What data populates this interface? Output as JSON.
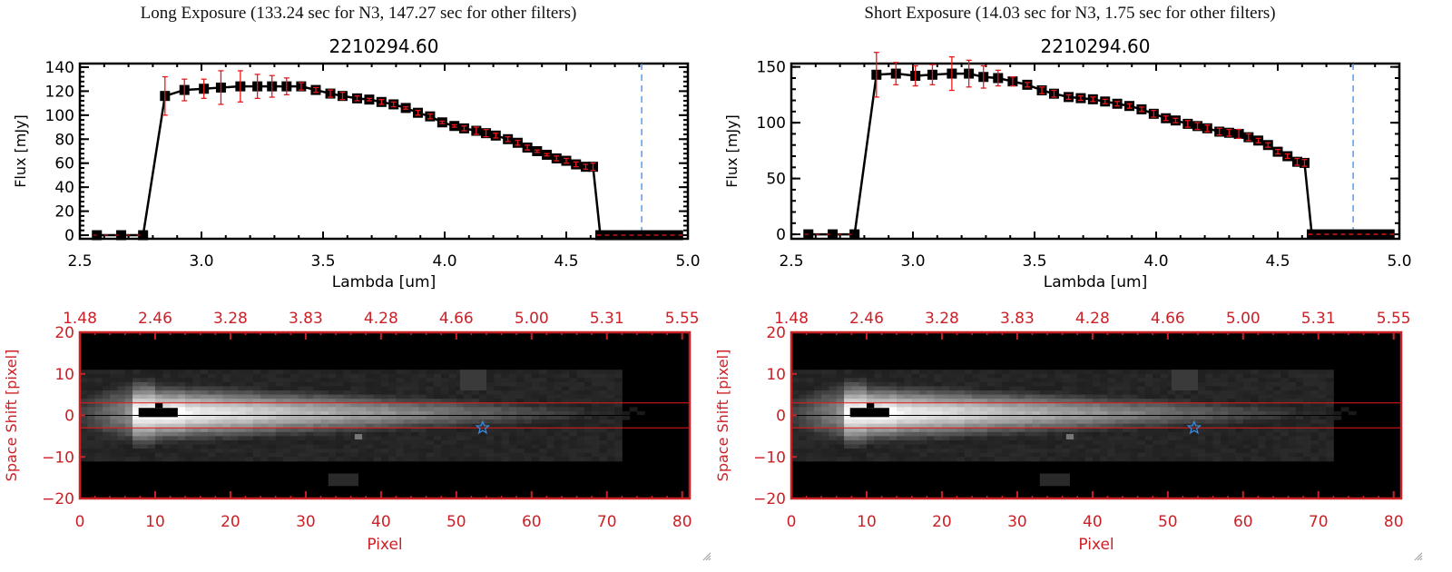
{
  "chart_data": [
    {
      "id": "long",
      "panel_title": "Long Exposure (133.24 sec for N3, 147.27 sec for other filters)",
      "spectrum": {
        "type": "line",
        "title": "2210294.60",
        "xlabel": "Lambda [um]",
        "ylabel": "Flux [mJy]",
        "xlim": [
          2.5,
          5.0
        ],
        "ylim": [
          -3,
          143
        ],
        "xticks": [
          "2.5",
          "3.0",
          "3.5",
          "4.0",
          "4.5",
          "5.0"
        ],
        "xtick_values": [
          2.5,
          3.0,
          3.5,
          4.0,
          4.5,
          5.0
        ],
        "yticks": [
          0,
          20,
          40,
          60,
          80,
          100,
          120,
          140
        ],
        "ytick_labels": [
          "0",
          "20",
          "40",
          "60",
          "80",
          "100",
          "120",
          "140"
        ],
        "marker_line_lambda": 4.81,
        "series": [
          {
            "name": "flux",
            "x": [
              2.57,
              2.67,
              2.76,
              2.85,
              2.93,
              3.01,
              3.08,
              3.16,
              3.23,
              3.29,
              3.35,
              3.41,
              3.47,
              3.53,
              3.58,
              3.64,
              3.69,
              3.74,
              3.79,
              3.84,
              3.89,
              3.94,
              3.99,
              4.04,
              4.08,
              4.13,
              4.17,
              4.21,
              4.26,
              4.3,
              4.34,
              4.38,
              4.42,
              4.46,
              4.5,
              4.54,
              4.58,
              4.61,
              4.64,
              4.68,
              4.72,
              4.76,
              4.8,
              4.84,
              4.88,
              4.92,
              4.96
            ],
            "y": [
              0,
              0,
              0,
              116,
              121,
              122,
              123,
              124,
              124,
              124,
              124,
              124,
              121,
              118,
              116,
              114,
              113,
              111,
              109,
              106,
              102,
              99,
              94,
              91,
              89,
              87,
              85,
              83,
              80,
              77,
              73,
              70,
              67,
              64,
              62,
              59,
              57,
              57,
              0,
              0,
              0,
              0,
              0,
              0,
              0,
              0,
              0
            ],
            "yerr": [
              0,
              0,
              0,
              16,
              9,
              8,
              14,
              13,
              10,
              9,
              7,
              3,
              2,
              3,
              3,
              2,
              1,
              2,
              2,
              1,
              2,
              2,
              1,
              1,
              2,
              3,
              3,
              2,
              2,
              2,
              2,
              1,
              1,
              2,
              2,
              2,
              2,
              3,
              0,
              0,
              0,
              0,
              0,
              0,
              0,
              0,
              0
            ]
          }
        ]
      },
      "image": {
        "type": "heatmap",
        "xlabel": "Pixel",
        "ylabel": "Space Shift [pixel]",
        "xlim": [
          0,
          81
        ],
        "ylim": [
          -20,
          20
        ],
        "xticks": [
          0,
          10,
          20,
          30,
          40,
          50,
          60,
          70,
          80
        ],
        "xtick_labels": [
          "0",
          "10",
          "20",
          "30",
          "40",
          "50",
          "60",
          "70",
          "80"
        ],
        "yticks": [
          -20,
          -10,
          0,
          10,
          20
        ],
        "ytick_labels": [
          "−20",
          "−10",
          "0",
          "10",
          "20"
        ],
        "top_axis_labels": [
          "1.48",
          "2.46",
          "3.28",
          "3.83",
          "4.28",
          "4.66",
          "5.00",
          "5.31",
          "5.55"
        ],
        "aperture_lines": [
          3,
          -3
        ],
        "center_line": 0,
        "star_marker": {
          "x": 53.5,
          "y": -3,
          "symbol": "star"
        }
      }
    },
    {
      "id": "short",
      "panel_title": "Short Exposure (14.03 sec for N3, 1.75 sec for other filters)",
      "spectrum": {
        "type": "line",
        "title": "2210294.60",
        "xlabel": "Lambda [um]",
        "ylabel": "Flux [mJy]",
        "xlim": [
          2.5,
          5.0
        ],
        "ylim": [
          -4,
          153
        ],
        "xticks": [
          "2.5",
          "3.0",
          "3.5",
          "4.0",
          "4.5",
          "5.0"
        ],
        "xtick_values": [
          2.5,
          3.0,
          3.5,
          4.0,
          4.5,
          5.0
        ],
        "yticks": [
          0,
          50,
          100,
          150
        ],
        "ytick_labels": [
          "0",
          "50",
          "100",
          "150"
        ],
        "marker_line_lambda": 4.81,
        "series": [
          {
            "name": "flux",
            "x": [
              2.57,
              2.67,
              2.76,
              2.85,
              2.93,
              3.01,
              3.08,
              3.16,
              3.23,
              3.29,
              3.35,
              3.41,
              3.47,
              3.53,
              3.58,
              3.64,
              3.69,
              3.74,
              3.79,
              3.84,
              3.89,
              3.94,
              3.99,
              4.04,
              4.08,
              4.13,
              4.17,
              4.21,
              4.26,
              4.3,
              4.34,
              4.38,
              4.42,
              4.46,
              4.5,
              4.54,
              4.58,
              4.61,
              4.64,
              4.68,
              4.72,
              4.76,
              4.8,
              4.84,
              4.88,
              4.92,
              4.96
            ],
            "y": [
              0,
              0,
              0,
              143,
              144,
              142,
              143,
              144,
              144,
              141,
              140,
              137,
              134,
              129,
              126,
              123,
              122,
              121,
              119,
              117,
              115,
              112,
              108,
              104,
              102,
              99,
              97,
              95,
              92,
              91,
              90,
              87,
              84,
              80,
              74,
              70,
              65,
              64,
              0,
              0,
              0,
              0,
              0,
              0,
              0,
              0,
              0
            ],
            "yerr": [
              0,
              0,
              0,
              20,
              10,
              9,
              9,
              15,
              12,
              10,
              7,
              4,
              2,
              3,
              3,
              2,
              2,
              2,
              2,
              2,
              2,
              2,
              3,
              2,
              2,
              3,
              3,
              3,
              3,
              3,
              4,
              3,
              2,
              2,
              2,
              2,
              3,
              3,
              0,
              0,
              0,
              0,
              0,
              0,
              0,
              0,
              0
            ]
          }
        ]
      },
      "image": {
        "type": "heatmap",
        "xlabel": "Pixel",
        "ylabel": "Space Shift [pixel]",
        "xlim": [
          0,
          81
        ],
        "ylim": [
          -20,
          20
        ],
        "xticks": [
          0,
          10,
          20,
          30,
          40,
          50,
          60,
          70,
          80
        ],
        "xtick_labels": [
          "0",
          "10",
          "20",
          "30",
          "40",
          "50",
          "60",
          "70",
          "80"
        ],
        "yticks": [
          -20,
          -10,
          0,
          10,
          20
        ],
        "ytick_labels": [
          "−20",
          "−10",
          "0",
          "10",
          "20"
        ],
        "top_axis_labels": [
          "1.48",
          "2.46",
          "3.28",
          "3.83",
          "4.28",
          "4.66",
          "5.00",
          "5.31",
          "5.55"
        ],
        "aperture_lines": [
          3,
          -3
        ],
        "center_line": 0,
        "star_marker": {
          "x": 53.5,
          "y": -3,
          "symbol": "star"
        }
      }
    }
  ],
  "colors": {
    "axis": "#000000",
    "line": "#000000",
    "errorbar": "#e8191b",
    "image_axis": "#cc2027",
    "aperture": "#e8191b",
    "marker_line": "#3a8ee6",
    "star": "#3a8ee6",
    "zero_dash": "#e8191b"
  }
}
